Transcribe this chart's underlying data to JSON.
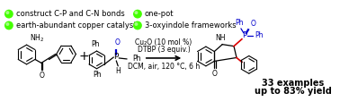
{
  "bg_color": "#ffffff",
  "reaction_conditions": [
    "Cu₂O (10 mol %)",
    "DTBP (3 equiv.)",
    "DCM, air, 120 °C, 6 h"
  ],
  "yield_line1": "33 examples",
  "yield_line2": "up to 83% yield",
  "bullet_items_left": [
    "construct C-P and C-N bonds",
    "earth-abundant copper catalyst"
  ],
  "bullet_items_right": [
    "one-pot",
    "3-oxyindole frameworks"
  ],
  "bullet_color": "#44ff00",
  "red_bond_color": "#dd0000",
  "blue_color": "#0000cc",
  "conditions_fontsize": 5.5,
  "bullet_fontsize": 6.0,
  "yield_fontsize": 7.0,
  "text_color": "#000000",
  "figw": 3.78,
  "figh": 1.23,
  "dpi": 100
}
